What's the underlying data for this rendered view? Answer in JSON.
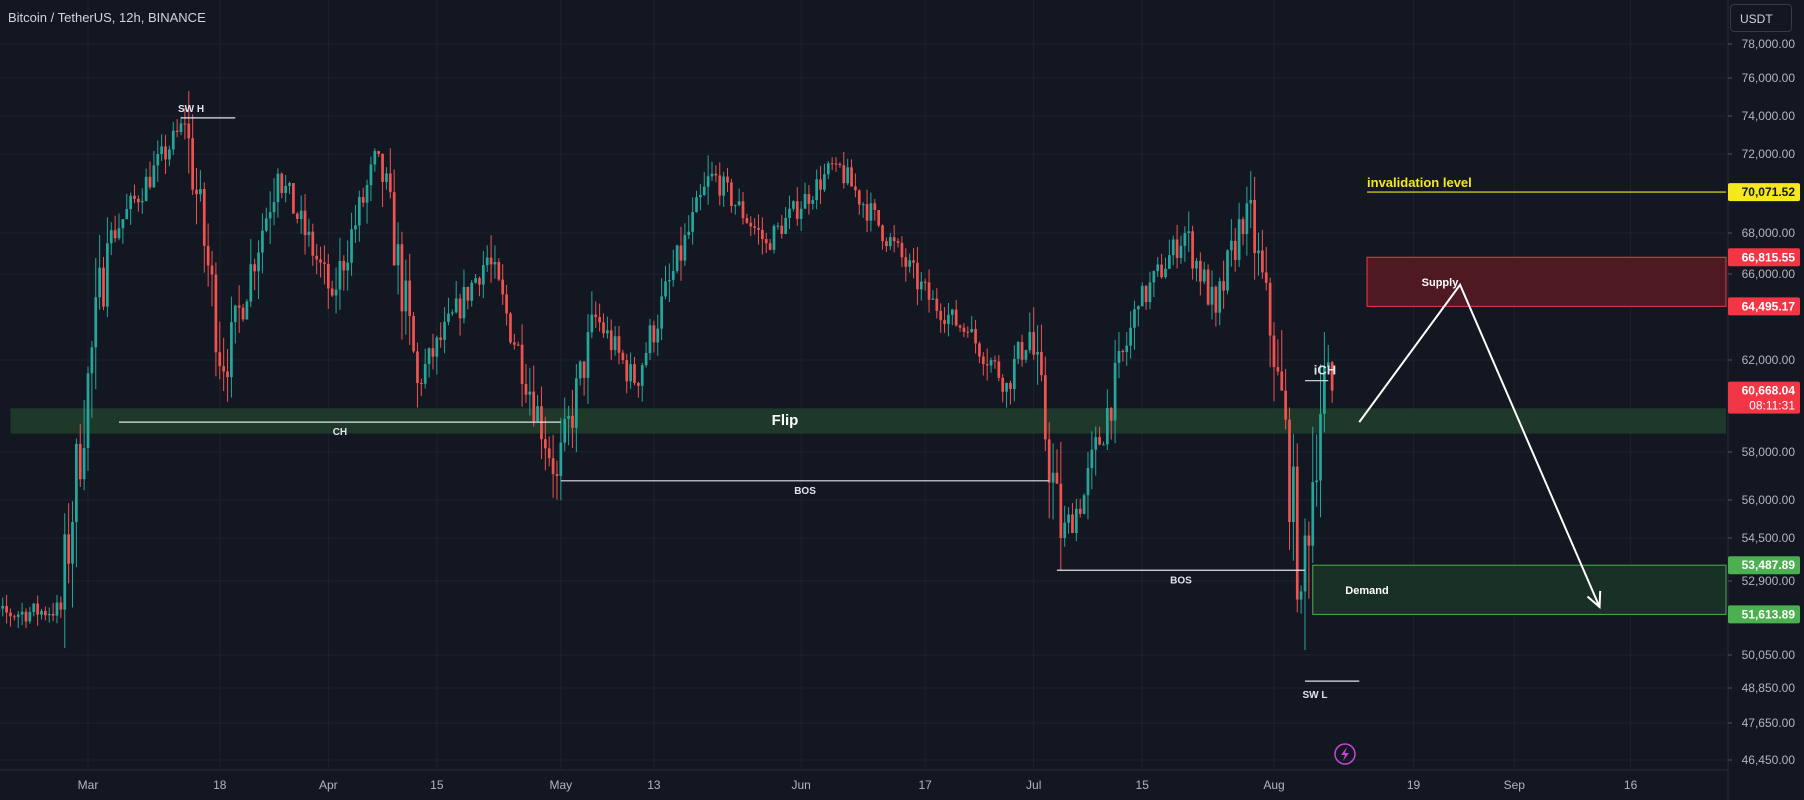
{
  "header": {
    "symbol_title": "Bitcoin / TetherUS, 12h, BINANCE",
    "currency_button": "USDT"
  },
  "colors": {
    "background": "#131722",
    "up": "#26a69a",
    "down": "#ef5350",
    "grid": "#1e222d",
    "axis_text": "#b2b5be",
    "invalidation": "#f6e71e",
    "supply_zone": "#6e1a23",
    "demand_zone": "#1e3a2c",
    "flip_zone": "#1f3a2b",
    "current_price": "#f23645",
    "demand_price": "#4caf50",
    "lightning_icon": "#c846d6"
  },
  "icons": {
    "lightning": "lightning-icon"
  },
  "chart_data": {
    "type": "candlestick",
    "title": "Bitcoin / TetherUS, 12h, BINANCE",
    "series_name": "BTCUSDT",
    "ylim": [
      45800,
      79000
    ],
    "x_range": [
      "2024-02-15",
      "2024-08-23"
    ],
    "price_axis_ticks": [
      "78,000.00",
      "76,000.00",
      "74,000.00",
      "72,000.00",
      "68,000.00",
      "66,000.00",
      "62,000.00",
      "58,000.00",
      "56,000.00",
      "54,500.00",
      "52,900.00",
      "50,050.00",
      "48,850.00",
      "47,650.00",
      "46,450.00"
    ],
    "price_axis_tick_values": [
      78000,
      76000,
      74000,
      72000,
      68000,
      66000,
      62000,
      58000,
      56000,
      54500,
      52900,
      50050,
      48850,
      47650,
      46450
    ],
    "time_axis_ticks": [
      {
        "label": "Mar",
        "date": "2024-03-01"
      },
      {
        "label": "18",
        "date": "2024-03-18"
      },
      {
        "label": "Apr",
        "date": "2024-04-01"
      },
      {
        "label": "15",
        "date": "2024-04-15"
      },
      {
        "label": "May",
        "date": "2024-05-01"
      },
      {
        "label": "13",
        "date": "2024-05-13"
      },
      {
        "label": "Jun",
        "date": "2024-06-01"
      },
      {
        "label": "17",
        "date": "2024-06-17"
      },
      {
        "label": "Jul",
        "date": "2024-07-01"
      },
      {
        "label": "15",
        "date": "2024-07-15"
      },
      {
        "label": "Aug",
        "date": "2024-08-01"
      },
      {
        "label": "19",
        "date": "2024-08-19"
      },
      {
        "label": "Sep",
        "date": "2024-09-01"
      },
      {
        "label": "16",
        "date": "2024-09-16"
      }
    ],
    "price_labels": [
      {
        "value": 70071.52,
        "text": "70,071.52",
        "style": "invalidation"
      },
      {
        "value": 66815.55,
        "text": "66,815.55",
        "style": "supply"
      },
      {
        "value": 64495.17,
        "text": "64,495.17",
        "style": "supply"
      },
      {
        "value": 60668.04,
        "text": "60,668.04",
        "countdown": "08:11:31",
        "style": "current"
      },
      {
        "value": 53487.89,
        "text": "53,487.89",
        "style": "demand"
      },
      {
        "value": 51613.89,
        "text": "51,613.89",
        "style": "demand"
      }
    ],
    "zones": [
      {
        "name": "Supply",
        "label": "Supply",
        "from": "2024-08-13",
        "to": "2024-12-31",
        "top": 66815.55,
        "bottom": 64495.17,
        "style": "supply"
      },
      {
        "name": "Demand",
        "label": "Demand",
        "from": "2024-08-06",
        "to": "2024-12-31",
        "top": 53487.89,
        "bottom": 51613.89,
        "style": "demand"
      },
      {
        "name": "Flip",
        "label": "Flip",
        "from": "2024-02-20",
        "to": "2024-12-31",
        "top": 59900,
        "bottom": 58800,
        "style": "flip"
      }
    ],
    "annotations": [
      {
        "label": "SW H",
        "type": "horizontal",
        "from": "2024-03-13",
        "to": "2024-03-20",
        "price": 73900
      },
      {
        "label": "CH",
        "type": "horizontal",
        "from": "2024-03-05",
        "to": "2024-05-01",
        "price": 59300
      },
      {
        "label": "BOS",
        "type": "horizontal",
        "from": "2024-05-01",
        "to": "2024-07-03",
        "price": 56800
      },
      {
        "label": "BOS",
        "type": "horizontal",
        "from": "2024-07-04",
        "to": "2024-08-05",
        "price": 53300
      },
      {
        "label": "iCH",
        "type": "horizontal",
        "from": "2024-08-05",
        "to": "2024-08-08",
        "price": 61100
      },
      {
        "label": "SW L",
        "type": "horizontal",
        "from": "2024-08-05",
        "to": "2024-08-12",
        "price": 49100
      },
      {
        "label": "invalidation level",
        "type": "horizontal",
        "from": "2024-08-13",
        "to": "2024-12-31",
        "price": 70071.52,
        "style": "invalidation"
      }
    ],
    "projection_path": [
      {
        "date": "2024-08-12",
        "price": 59300
      },
      {
        "date": "2024-08-25",
        "price": 65500
      },
      {
        "date": "2024-09-12",
        "price": 51900
      }
    ],
    "candles_date_range": [
      "2024-02-15",
      "2024-08-09"
    ],
    "swing_points": [
      {
        "date": "2024-02-15",
        "price": 51500
      },
      {
        "date": "2024-02-27",
        "price": 51800
      },
      {
        "date": "2024-03-04",
        "price": 67500
      },
      {
        "date": "2024-03-14",
        "price": 73600
      },
      {
        "date": "2024-03-19",
        "price": 61500
      },
      {
        "date": "2024-03-26",
        "price": 71000
      },
      {
        "date": "2024-04-02",
        "price": 65000
      },
      {
        "date": "2024-04-08",
        "price": 72000
      },
      {
        "date": "2024-04-13",
        "price": 61000
      },
      {
        "date": "2024-04-22",
        "price": 66800
      },
      {
        "date": "2024-05-01",
        "price": 57000
      },
      {
        "date": "2024-05-06",
        "price": 64000
      },
      {
        "date": "2024-05-11",
        "price": 61000
      },
      {
        "date": "2024-05-21",
        "price": 71000
      },
      {
        "date": "2024-05-28",
        "price": 67500
      },
      {
        "date": "2024-06-06",
        "price": 71500
      },
      {
        "date": "2024-06-18",
        "price": 64800
      },
      {
        "date": "2024-06-23",
        "price": 63300
      },
      {
        "date": "2024-06-28",
        "price": 61000
      },
      {
        "date": "2024-07-01",
        "price": 63300
      },
      {
        "date": "2024-07-05",
        "price": 54500
      },
      {
        "date": "2024-07-08",
        "price": 56200
      },
      {
        "date": "2024-07-15",
        "price": 64500
      },
      {
        "date": "2024-07-21",
        "price": 68000
      },
      {
        "date": "2024-07-25",
        "price": 64200
      },
      {
        "date": "2024-07-29",
        "price": 69500
      },
      {
        "date": "2024-08-02",
        "price": 61500
      },
      {
        "date": "2024-08-05",
        "price": 52500
      },
      {
        "date": "2024-08-08",
        "price": 61700
      },
      {
        "date": "2024-08-09",
        "price": 60668
      }
    ]
  }
}
